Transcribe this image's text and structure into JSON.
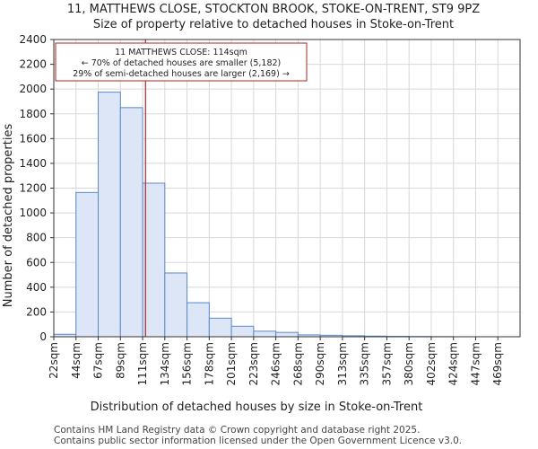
{
  "chart_data": {
    "type": "bar",
    "title": "11, MATTHEWS CLOSE, STOCKTON BROOK, STOKE-ON-TRENT, ST9 9PZ",
    "subtitle": "Size of property relative to detached houses in Stoke-on-Trent",
    "xlabel": "Distribution of detached houses by size in Stoke-on-Trent",
    "ylabel": "Number of detached properties",
    "ylim": [
      0,
      2400
    ],
    "yticks": [
      0,
      200,
      400,
      600,
      800,
      1000,
      1200,
      1400,
      1600,
      1800,
      2000,
      2200,
      2400
    ],
    "categories": [
      "22sqm",
      "44sqm",
      "67sqm",
      "89sqm",
      "111sqm",
      "134sqm",
      "156sqm",
      "178sqm",
      "201sqm",
      "223sqm",
      "246sqm",
      "268sqm",
      "290sqm",
      "313sqm",
      "335sqm",
      "357sqm",
      "380sqm",
      "402sqm",
      "424sqm",
      "447sqm",
      "469sqm"
    ],
    "values": [
      20,
      1165,
      1975,
      1850,
      1240,
      515,
      275,
      150,
      85,
      45,
      35,
      15,
      12,
      8,
      5,
      3,
      2,
      1,
      0,
      0,
      0
    ],
    "grid": true,
    "colors": {
      "bar_fill": "#dce6f6",
      "bar_edge": "#5b88c8",
      "marker": "#b22222",
      "grid": "#d8d8d8"
    },
    "marker": {
      "value_sqm": 114,
      "bin_position": 4.13
    },
    "annotation": {
      "lines": [
        "11 MATTHEWS CLOSE: 114sqm",
        "← 70% of detached houses are smaller (5,182)",
        "29% of semi-detached houses are larger (2,169) →"
      ]
    }
  },
  "footer": {
    "line1": "Contains HM Land Registry data © Crown copyright and database right 2025.",
    "line2": "Contains public sector information licensed under the Open Government Licence v3.0."
  }
}
